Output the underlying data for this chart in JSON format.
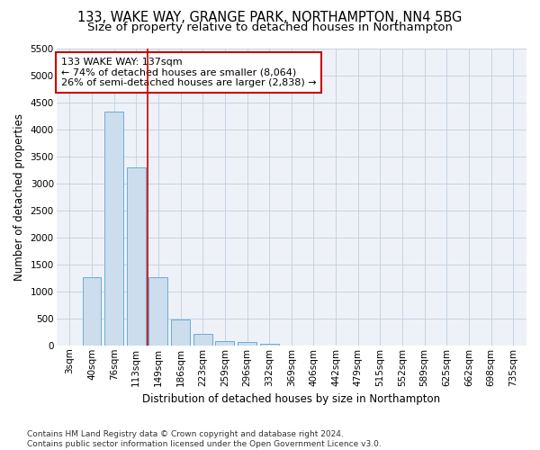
{
  "title1": "133, WAKE WAY, GRANGE PARK, NORTHAMPTON, NN4 5BG",
  "title2": "Size of property relative to detached houses in Northampton",
  "xlabel": "Distribution of detached houses by size in Northampton",
  "ylabel": "Number of detached properties",
  "categories": [
    "3sqm",
    "40sqm",
    "76sqm",
    "113sqm",
    "149sqm",
    "186sqm",
    "223sqm",
    "259sqm",
    "296sqm",
    "332sqm",
    "369sqm",
    "406sqm",
    "442sqm",
    "479sqm",
    "515sqm",
    "552sqm",
    "589sqm",
    "625sqm",
    "662sqm",
    "698sqm",
    "735sqm"
  ],
  "values": [
    0,
    1260,
    4330,
    3300,
    1270,
    480,
    215,
    75,
    55,
    30,
    0,
    0,
    0,
    0,
    0,
    0,
    0,
    0,
    0,
    0,
    0
  ],
  "bar_color": "#ccdded",
  "bar_edge_color": "#6aadd5",
  "vline_x_index": 3.5,
  "vline_color": "#cc0000",
  "annotation_text": "133 WAKE WAY: 137sqm\n← 74% of detached houses are smaller (8,064)\n26% of semi-detached houses are larger (2,838) →",
  "annotation_box_color": "#ffffff",
  "annotation_box_edge": "#cc0000",
  "ylim": [
    0,
    5500
  ],
  "yticks": [
    0,
    500,
    1000,
    1500,
    2000,
    2500,
    3000,
    3500,
    4000,
    4500,
    5000,
    5500
  ],
  "bg_color": "#eef2f8",
  "footnote": "Contains HM Land Registry data © Crown copyright and database right 2024.\nContains public sector information licensed under the Open Government Licence v3.0.",
  "title_fontsize": 10.5,
  "subtitle_fontsize": 9.5,
  "axis_label_fontsize": 8.5,
  "tick_fontsize": 7.5,
  "annotation_fontsize": 8,
  "footnote_fontsize": 6.5
}
